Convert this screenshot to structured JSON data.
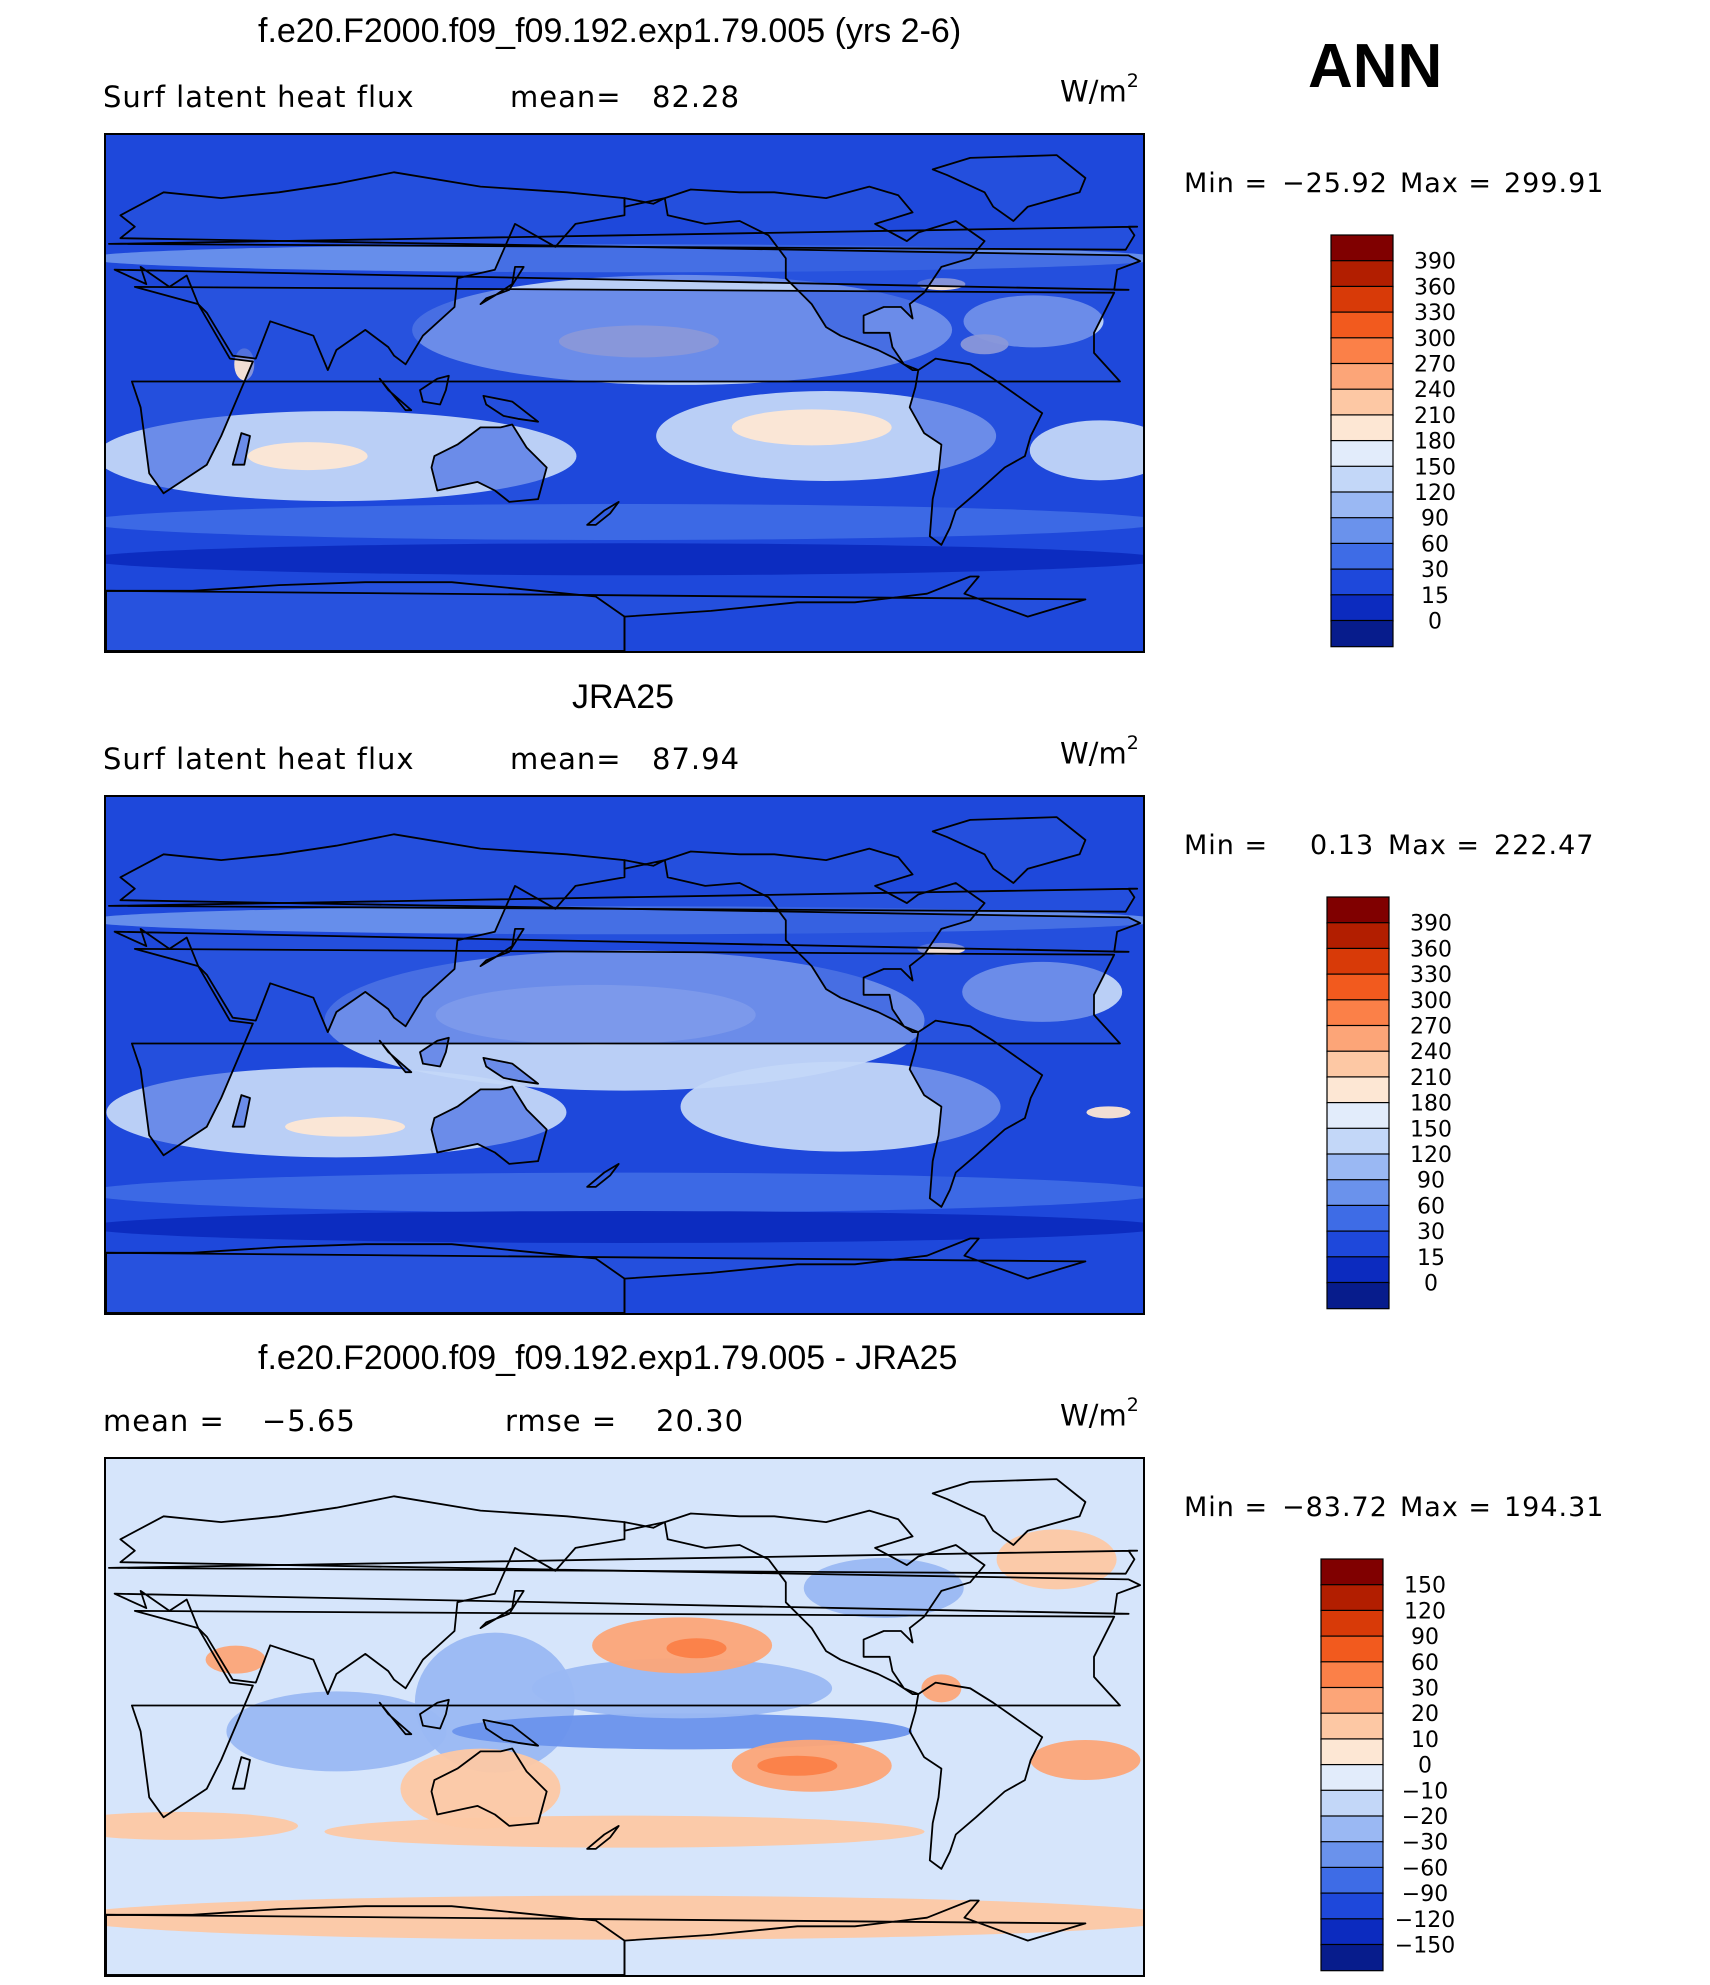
{
  "season": "ANN",
  "panels": [
    {
      "id": "model",
      "title": "f.e20.F2000.f09_f09.192.exp1.79.005 (yrs 2-6)",
      "left_label": "Surf latent heat flux",
      "mid_label": "mean=",
      "mid_value": "82.28",
      "units": "W/m",
      "units_exp": "2",
      "min_label": "Min =",
      "min_value": "−25.92",
      "max_label": "Max =",
      "max_value": "299.91",
      "colorbar_labels": [
        "390",
        "360",
        "330",
        "300",
        "270",
        "240",
        "210",
        "180",
        "150",
        "120",
        "90",
        "60",
        "30",
        "15",
        "0"
      ],
      "colorbar_colors": [
        "#800000",
        "#b21e00",
        "#d83a08",
        "#f25a1e",
        "#fb8048",
        "#fca578",
        "#fdc8a4",
        "#fde7d4",
        "#e2ecfb",
        "#c3d7f8",
        "#9ab8f3",
        "#6a92ec",
        "#3e6ce6",
        "#1e48db",
        "#0c2bbf",
        "#071c8c"
      ],
      "map_palette": "absolute",
      "map_base": "#1e48db"
    },
    {
      "id": "obs",
      "title": "JRA25",
      "left_label": "Surf latent heat flux",
      "mid_label": "mean=",
      "mid_value": "87.94",
      "units": "W/m",
      "units_exp": "2",
      "min_label": "Min =",
      "min_value": "0.13",
      "max_label": "Max =",
      "max_value": "222.47",
      "colorbar_labels": [
        "390",
        "360",
        "330",
        "300",
        "270",
        "240",
        "210",
        "180",
        "150",
        "120",
        "90",
        "60",
        "30",
        "15",
        "0"
      ],
      "colorbar_colors": [
        "#800000",
        "#b21e00",
        "#d83a08",
        "#f25a1e",
        "#fb8048",
        "#fca578",
        "#fdc8a4",
        "#fde7d4",
        "#e2ecfb",
        "#c3d7f8",
        "#9ab8f3",
        "#6a92ec",
        "#3e6ce6",
        "#1e48db",
        "#0c2bbf",
        "#071c8c"
      ],
      "map_palette": "absolute",
      "map_base": "#1e48db"
    },
    {
      "id": "diff",
      "title": "f.e20.F2000.f09_f09.192.exp1.79.005 - JRA25",
      "left_label": "mean =",
      "left_value": "−5.65",
      "mid_label": "rmse =",
      "mid_value": "20.30",
      "units": "W/m",
      "units_exp": "2",
      "min_label": "Min =",
      "min_value": "−83.72",
      "max_label": "Max =",
      "max_value": "194.31",
      "colorbar_labels": [
        "150",
        "120",
        "90",
        "60",
        "30",
        "20",
        "10",
        "0",
        "−10",
        "−20",
        "−30",
        "−60",
        "−90",
        "−120",
        "−150"
      ],
      "colorbar_colors": [
        "#800000",
        "#b21e00",
        "#d83a08",
        "#f25a1e",
        "#fb8048",
        "#fca578",
        "#fdc8a4",
        "#fde7d4",
        "#e2ecfb",
        "#c3d7f8",
        "#9ab8f3",
        "#6a92ec",
        "#3e6ce6",
        "#1e48db",
        "#0c2bbf",
        "#071c8c"
      ],
      "map_palette": "diff",
      "map_base": "#d6e5fb"
    }
  ]
}
